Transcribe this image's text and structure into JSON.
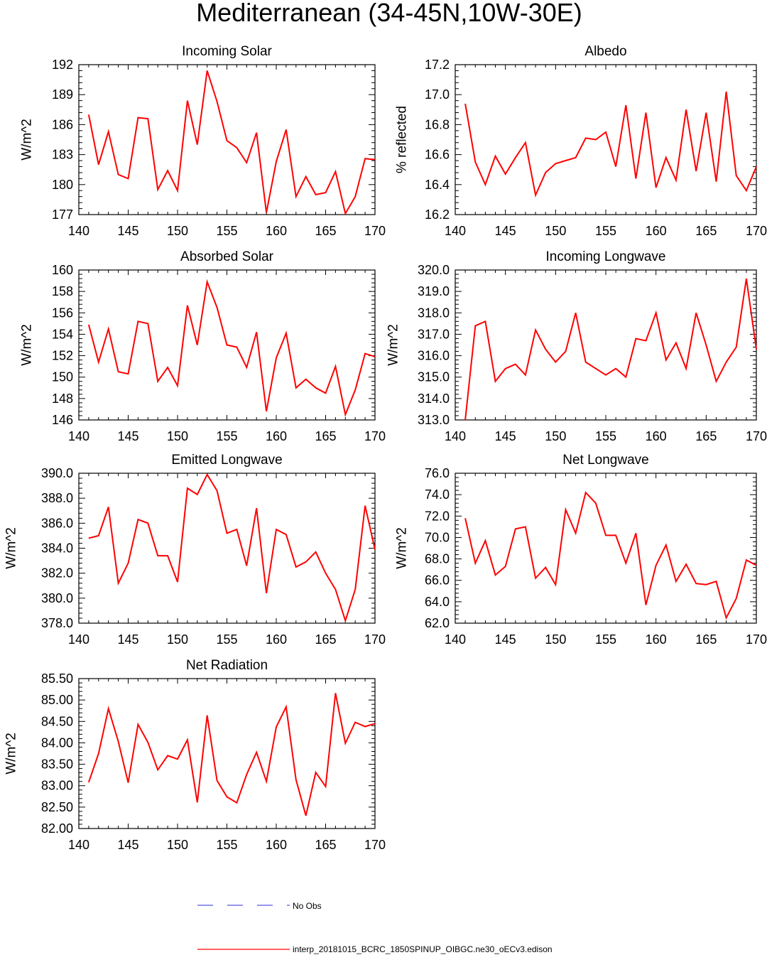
{
  "figure_title": "Mediterranean (34-45N,10W-30E)",
  "colors": {
    "model_line": "#ff0000",
    "obs_line": "#2b2bd8",
    "axis": "#000000",
    "background": "#ffffff"
  },
  "legend": {
    "obs_label": "No Obs",
    "model_label": "interp_20181015_BCRC_1850SPINUP_OIBGC.ne30_oECv3.edison"
  },
  "chart_data": [
    {
      "type": "line",
      "title": "Incoming Solar",
      "ylabel": "W/m^2",
      "xlim": [
        140,
        170
      ],
      "ylim": [
        177,
        192
      ],
      "xticks": [
        "140",
        "145",
        "150",
        "155",
        "160",
        "165",
        "170"
      ],
      "yticks": [
        "177",
        "180",
        "183",
        "186",
        "189",
        "192"
      ],
      "series": [
        {
          "name": "interp_20181015_BCRC_1850SPINUP_OIBGC.ne30_oECv3.edison",
          "x": [
            141,
            142,
            143,
            144,
            145,
            146,
            147,
            148,
            149,
            150,
            151,
            152,
            153,
            154,
            155,
            156,
            157,
            158,
            159,
            160,
            161,
            162,
            163,
            164,
            165,
            166,
            167,
            168,
            169,
            170
          ],
          "values": [
            187.0,
            182.0,
            185.3,
            181.0,
            180.6,
            186.7,
            186.6,
            179.5,
            181.4,
            179.4,
            188.4,
            184.0,
            191.4,
            188.3,
            184.4,
            183.7,
            182.2,
            185.2,
            177.2,
            182.3,
            185.5,
            178.8,
            180.8,
            179.0,
            179.2,
            181.3,
            177.1,
            178.8,
            182.6,
            182.5
          ]
        }
      ]
    },
    {
      "type": "line",
      "title": "Albedo",
      "ylabel": "% reflected",
      "xlim": [
        140,
        170
      ],
      "ylim": [
        16.2,
        17.2
      ],
      "xticks": [
        "140",
        "145",
        "150",
        "155",
        "160",
        "165",
        "170"
      ],
      "yticks": [
        "16.2",
        "16.4",
        "16.6",
        "16.8",
        "17.0",
        "17.2"
      ],
      "series": [
        {
          "name": "interp_20181015_BCRC_1850SPINUP_OIBGC.ne30_oECv3.edison",
          "x": [
            141,
            142,
            143,
            144,
            145,
            146,
            147,
            148,
            149,
            150,
            151,
            152,
            153,
            154,
            155,
            156,
            157,
            158,
            159,
            160,
            161,
            162,
            163,
            164,
            165,
            166,
            167,
            168,
            169,
            170
          ],
          "values": [
            16.94,
            16.55,
            16.4,
            16.59,
            16.47,
            16.58,
            16.68,
            16.33,
            16.48,
            16.54,
            16.56,
            16.58,
            16.71,
            16.7,
            16.75,
            16.52,
            16.93,
            16.44,
            16.88,
            16.38,
            16.58,
            16.43,
            16.9,
            16.49,
            16.88,
            16.42,
            17.02,
            16.46,
            16.36,
            16.52
          ]
        }
      ]
    },
    {
      "type": "line",
      "title": "Absorbed Solar",
      "ylabel": "W/m^2",
      "xlim": [
        140,
        170
      ],
      "ylim": [
        146,
        160
      ],
      "xticks": [
        "140",
        "145",
        "150",
        "155",
        "160",
        "165",
        "170"
      ],
      "yticks": [
        "146",
        "148",
        "150",
        "152",
        "154",
        "156",
        "158",
        "160"
      ],
      "series": [
        {
          "name": "interp_20181015_BCRC_1850SPINUP_OIBGC.ne30_oECv3.edison",
          "x": [
            141,
            142,
            143,
            144,
            145,
            146,
            147,
            148,
            149,
            150,
            151,
            152,
            153,
            154,
            155,
            156,
            157,
            158,
            159,
            160,
            161,
            162,
            163,
            164,
            165,
            166,
            167,
            168,
            169,
            170
          ],
          "values": [
            154.9,
            151.4,
            154.5,
            150.5,
            150.3,
            155.2,
            155.0,
            149.6,
            150.9,
            149.2,
            156.7,
            153.0,
            158.9,
            156.5,
            153.0,
            152.8,
            150.9,
            154.2,
            146.8,
            151.8,
            154.1,
            149.0,
            149.8,
            149.0,
            148.5,
            151.0,
            146.5,
            148.8,
            152.2,
            151.9
          ]
        }
      ]
    },
    {
      "type": "line",
      "title": "Incoming Longwave",
      "ylabel": "W/m^2",
      "xlim": [
        140,
        170
      ],
      "ylim": [
        313.0,
        320.0
      ],
      "xticks": [
        "140",
        "145",
        "150",
        "155",
        "160",
        "165",
        "170"
      ],
      "yticks": [
        "313.0",
        "314.0",
        "315.0",
        "316.0",
        "317.0",
        "318.0",
        "319.0",
        "320.0"
      ],
      "series": [
        {
          "name": "interp_20181015_BCRC_1850SPINUP_OIBGC.ne30_oECv3.edison",
          "x": [
            141,
            142,
            143,
            144,
            145,
            146,
            147,
            148,
            149,
            150,
            151,
            152,
            153,
            154,
            155,
            156,
            157,
            158,
            159,
            160,
            161,
            162,
            163,
            164,
            165,
            166,
            167,
            168,
            169,
            170
          ],
          "values": [
            313.0,
            317.4,
            317.6,
            314.8,
            315.4,
            315.6,
            315.1,
            317.2,
            316.3,
            315.7,
            316.2,
            318.0,
            315.7,
            315.4,
            315.1,
            315.4,
            315.0,
            316.8,
            316.7,
            318.0,
            315.8,
            316.6,
            315.4,
            318.0,
            316.5,
            314.8,
            315.7,
            316.4,
            319.6,
            316.3
          ]
        }
      ]
    },
    {
      "type": "line",
      "title": "Emitted Longwave",
      "ylabel": "W/m^2",
      "xlim": [
        140,
        170
      ],
      "ylim": [
        378.0,
        390.0
      ],
      "xticks": [
        "140",
        "145",
        "150",
        "155",
        "160",
        "165",
        "170"
      ],
      "yticks": [
        "378.0",
        "380.0",
        "382.0",
        "384.0",
        "386.0",
        "388.0",
        "390.0"
      ],
      "series": [
        {
          "name": "interp_20181015_BCRC_1850SPINUP_OIBGC.ne30_oECv3.edison",
          "x": [
            141,
            142,
            143,
            144,
            145,
            146,
            147,
            148,
            149,
            150,
            151,
            152,
            153,
            154,
            155,
            156,
            157,
            158,
            159,
            160,
            161,
            162,
            163,
            164,
            165,
            166,
            167,
            168,
            169,
            170
          ],
          "values": [
            384.8,
            385.0,
            387.3,
            381.2,
            382.8,
            386.3,
            386.0,
            383.4,
            383.4,
            381.3,
            388.8,
            388.3,
            389.9,
            388.6,
            385.2,
            385.5,
            382.6,
            387.2,
            380.4,
            385.5,
            385.1,
            382.5,
            382.9,
            383.7,
            382.0,
            380.7,
            378.2,
            380.7,
            387.4,
            383.9
          ]
        }
      ]
    },
    {
      "type": "line",
      "title": "Net Longwave",
      "ylabel": "W/m^2",
      "xlim": [
        140,
        170
      ],
      "ylim": [
        62.0,
        76.0
      ],
      "xticks": [
        "140",
        "145",
        "150",
        "155",
        "160",
        "165",
        "170"
      ],
      "yticks": [
        "62.0",
        "64.0",
        "66.0",
        "68.0",
        "70.0",
        "72.0",
        "74.0",
        "76.0"
      ],
      "series": [
        {
          "name": "interp_20181015_BCRC_1850SPINUP_OIBGC.ne30_oECv3.edison",
          "x": [
            141,
            142,
            143,
            144,
            145,
            146,
            147,
            148,
            149,
            150,
            151,
            152,
            153,
            154,
            155,
            156,
            157,
            158,
            159,
            160,
            161,
            162,
            163,
            164,
            165,
            166,
            167,
            168,
            169,
            170
          ],
          "values": [
            71.8,
            67.6,
            69.7,
            66.5,
            67.3,
            70.8,
            71.0,
            66.2,
            67.2,
            65.6,
            72.6,
            70.4,
            74.2,
            73.2,
            70.2,
            70.2,
            67.6,
            70.4,
            63.7,
            67.4,
            69.3,
            65.9,
            67.5,
            65.7,
            65.6,
            65.9,
            62.5,
            64.3,
            67.9,
            67.4
          ]
        }
      ]
    },
    {
      "type": "line",
      "title": "Net Radiation",
      "ylabel": "W/m^2",
      "xlim": [
        140,
        170
      ],
      "ylim": [
        82.0,
        85.5
      ],
      "xticks": [
        "140",
        "145",
        "150",
        "155",
        "160",
        "165",
        "170"
      ],
      "yticks": [
        "82.00",
        "82.50",
        "83.00",
        "83.50",
        "84.00",
        "84.50",
        "85.00",
        "85.50"
      ],
      "series": [
        {
          "name": "interp_20181015_BCRC_1850SPINUP_OIBGC.ne30_oECv3.edison",
          "x": [
            141,
            142,
            143,
            144,
            145,
            146,
            147,
            148,
            149,
            150,
            151,
            152,
            153,
            154,
            155,
            156,
            157,
            158,
            159,
            160,
            161,
            162,
            163,
            164,
            165,
            166,
            167,
            168,
            169,
            170
          ],
          "values": [
            83.08,
            83.75,
            84.8,
            84.03,
            83.07,
            84.43,
            84.01,
            83.37,
            83.7,
            83.62,
            84.07,
            82.61,
            84.64,
            83.12,
            82.74,
            82.6,
            83.26,
            83.78,
            83.1,
            84.37,
            84.84,
            83.14,
            82.3,
            83.31,
            82.98,
            85.16,
            83.99,
            84.48,
            84.38,
            84.45
          ]
        }
      ]
    }
  ]
}
